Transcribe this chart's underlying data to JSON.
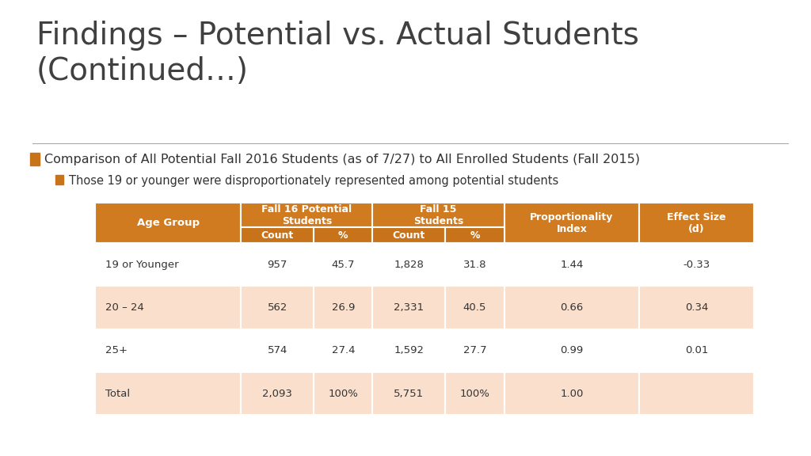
{
  "title": "Findings – Potential vs. Actual Students\n(Continued…)",
  "bullet1": "Comparison of All Potential Fall 2016 Students (as of 7/27) to All Enrolled Students (Fall 2015)",
  "bullet2": "Those 19 or younger were disproportionately represented among potential students",
  "bg_color": "#ffffff",
  "title_color": "#404040",
  "orange_header": "#D07B20",
  "orange_light": "#F5C6A0",
  "orange_dark": "#C8731A",
  "bottom_bar_color": "#A0522D",
  "table_header_color": "#D07B20",
  "table_subheader_color": "#C8731A",
  "table_row_odd": "#FFFFFF",
  "table_row_even": "#FAE0CC",
  "table_row_total": "#F5C6A0",
  "col_headers": [
    "Age Group",
    "Fall 16 Potential\nStudents",
    "",
    "Fall 15\nStudents",
    "",
    "Proportionality\nIndex",
    "Effect Size\n(d)"
  ],
  "sub_headers": [
    "",
    "Count",
    "%",
    "Count",
    "%",
    "",
    ""
  ],
  "rows": [
    [
      "19 or Younger",
      "957",
      "45.7",
      "1,828",
      "31.8",
      "1.44",
      "-0.33"
    ],
    [
      "20 – 24",
      "562",
      "26.9",
      "2,331",
      "40.5",
      "0.66",
      "0.34"
    ],
    [
      "25+",
      "574",
      "27.4",
      "1,592",
      "27.7",
      "0.99",
      "0.01"
    ],
    [
      "Total",
      "2,093",
      "100%",
      "5,751",
      "100%",
      "1.00",
      ""
    ]
  ]
}
